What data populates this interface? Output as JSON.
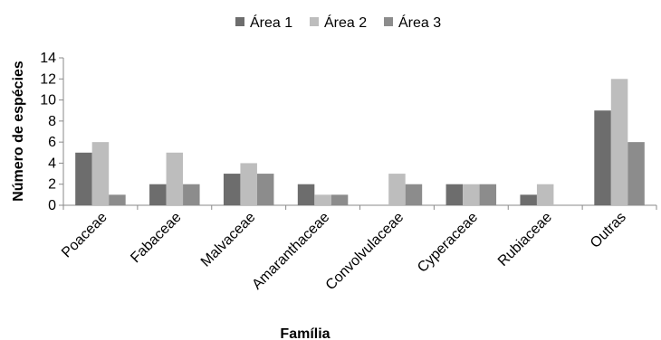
{
  "chart_data": {
    "type": "bar",
    "title": "",
    "xlabel": "Família",
    "ylabel": "Número de espécies",
    "ylim": [
      0,
      14
    ],
    "yticks": [
      0,
      2,
      4,
      6,
      8,
      10,
      12,
      14
    ],
    "grid": false,
    "legend_position": "top-center",
    "categories": [
      "Poaceae",
      "Fabaceae",
      "Malvaceae",
      "Amaranthaceae",
      "Convolvulaceae",
      "Cyperaceae",
      "Rubiaceae",
      "Outras"
    ],
    "series": [
      {
        "name": "Área 1",
        "color": "#6d6d6d",
        "values": [
          5,
          2,
          3,
          2,
          0,
          2,
          1,
          9
        ]
      },
      {
        "name": "Área 2",
        "color": "#bdbdbd",
        "values": [
          6,
          5,
          4,
          1,
          3,
          2,
          2,
          12
        ]
      },
      {
        "name": "Área 3",
        "color": "#8c8c8c",
        "values": [
          1,
          2,
          3,
          1,
          2,
          2,
          0,
          6
        ]
      }
    ]
  }
}
